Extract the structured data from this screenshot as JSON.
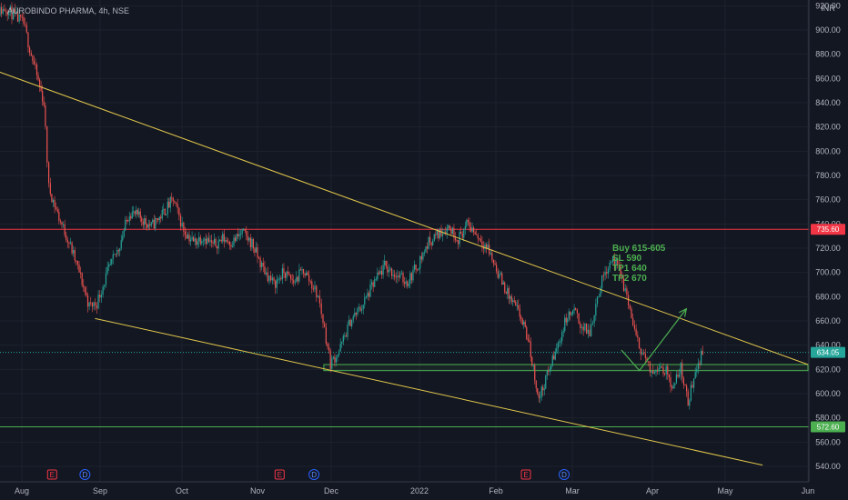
{
  "chart_data": {
    "type": "candlestick",
    "symbol": "AUROBINDO PHARMA, 4h, NSE",
    "currency": "INR",
    "y_ticks": [
      "540.00",
      "560.00",
      "580.00",
      "600.00",
      "620.00",
      "640.00",
      "660.00",
      "680.00",
      "700.00",
      "720.00",
      "740.00",
      "760.00",
      "780.00",
      "800.00",
      "820.00",
      "840.00",
      "860.00",
      "880.00",
      "900.00",
      "920.00"
    ],
    "x_ticks": [
      "Aug",
      "Sep",
      "Oct",
      "Nov",
      "Dec",
      "2022",
      "Feb",
      "Mar",
      "Apr",
      "May",
      "Jun"
    ],
    "ylim": [
      532,
      922
    ],
    "price_levels": [
      {
        "label": "735.60",
        "value": 735.6,
        "color": "#f23645",
        "style": "solid"
      },
      {
        "label": "634.05",
        "value": 634.05,
        "color": "#26a69a",
        "style": "dotted"
      },
      {
        "label": "572.60",
        "value": 572.6,
        "color": "#4caf50",
        "style": "solid"
      }
    ],
    "trendlines": [
      {
        "from": [
          "Jul 1",
          882
        ],
        "to": [
          "Jun 1",
          624
        ],
        "color": "#e2c74b"
      },
      {
        "from": [
          "Aug 30",
          662
        ],
        "to": [
          "May 15",
          541
        ],
        "color": "#e2c74b"
      }
    ],
    "support_zone": {
      "from": "Nov 28",
      "to": "Jun 1",
      "low": 619,
      "high": 624,
      "color": "#4caf50"
    },
    "projection_arrow": [
      [
        "Mar 20",
        636
      ],
      [
        "Mar 27",
        619
      ],
      [
        "Apr 15",
        670
      ]
    ],
    "annotation_lines": [
      "Buy 615-605",
      "SL 590",
      "TP1 640",
      "TP2 670"
    ],
    "event_markers": [
      {
        "text": "E",
        "date": "Aug 13",
        "type": "earnings"
      },
      {
        "text": "D",
        "date": "Aug 26",
        "type": "dividend"
      },
      {
        "text": "E",
        "date": "Nov 10",
        "type": "earnings"
      },
      {
        "text": "D",
        "date": "Nov 24",
        "type": "dividend"
      },
      {
        "text": "E",
        "date": "Feb 12",
        "type": "earnings"
      },
      {
        "text": "D",
        "date": "Feb 26",
        "type": "dividend"
      }
    ],
    "price_path": [
      [
        "Jul 20",
        912
      ],
      [
        "Jul 26",
        918
      ],
      [
        "Aug 2",
        905
      ],
      [
        "Aug 5",
        880
      ],
      [
        "Aug 10",
        840
      ],
      [
        "Aug 12",
        770
      ],
      [
        "Aug 16",
        745
      ],
      [
        "Aug 20",
        725
      ],
      [
        "Aug 24",
        700
      ],
      [
        "Aug 28",
        672
      ],
      [
        "Aug 31",
        675
      ],
      [
        "Sep 4",
        700
      ],
      [
        "Sep 8",
        720
      ],
      [
        "Sep 12",
        750
      ],
      [
        "Sep 16",
        745
      ],
      [
        "Sep 20",
        738
      ],
      [
        "Sep 24",
        748
      ],
      [
        "Sep 28",
        760
      ],
      [
        "Oct 2",
        735
      ],
      [
        "Oct 6",
        725
      ],
      [
        "Oct 10",
        730
      ],
      [
        "Oct 14",
        722
      ],
      [
        "Oct 18",
        728
      ],
      [
        "Oct 22",
        725
      ],
      [
        "Oct 26",
        733
      ],
      [
        "Oct 30",
        724
      ],
      [
        "Nov 3",
        705
      ],
      [
        "Nov 8",
        690
      ],
      [
        "Nov 12",
        700
      ],
      [
        "Nov 16",
        692
      ],
      [
        "Nov 20",
        702
      ],
      [
        "Nov 24",
        688
      ],
      [
        "Nov 26",
        680
      ],
      [
        "Nov 28",
        660
      ],
      [
        "Dec 1",
        625
      ],
      [
        "Dec 4",
        635
      ],
      [
        "Dec 8",
        660
      ],
      [
        "Dec 12",
        672
      ],
      [
        "Dec 16",
        690
      ],
      [
        "Dec 20",
        705
      ],
      [
        "Dec 24",
        698
      ],
      [
        "Dec 28",
        692
      ],
      [
        "Jan 1",
        708
      ],
      [
        "Jan 5",
        725
      ],
      [
        "Jan 9",
        732
      ],
      [
        "Jan 13",
        738
      ],
      [
        "Jan 17",
        728
      ],
      [
        "Jan 21",
        740
      ],
      [
        "Jan 25",
        730
      ],
      [
        "Jan 29",
        720
      ],
      [
        "Feb 2",
        700
      ],
      [
        "Feb 6",
        680
      ],
      [
        "Feb 10",
        665
      ],
      [
        "Feb 13",
        645
      ],
      [
        "Feb 15",
        620
      ],
      [
        "Feb 17",
        595
      ],
      [
        "Feb 20",
        615
      ],
      [
        "Feb 24",
        640
      ],
      [
        "Feb 27",
        662
      ],
      [
        "Mar 2",
        668
      ],
      [
        "Mar 5",
        655
      ],
      [
        "Mar 8",
        650
      ],
      [
        "Mar 11",
        680
      ],
      [
        "Mar 14",
        702
      ],
      [
        "Mar 17",
        712
      ],
      [
        "Mar 20",
        698
      ],
      [
        "Mar 23",
        675
      ],
      [
        "Mar 26",
        645
      ],
      [
        "Mar 29",
        632
      ],
      [
        "Apr 1",
        615
      ],
      [
        "Apr 4",
        625
      ],
      [
        "Apr 7",
        618
      ],
      [
        "Apr 10",
        605
      ],
      [
        "Apr 13",
        622
      ],
      [
        "Apr 16",
        592
      ],
      [
        "Apr 19",
        620
      ],
      [
        "Apr 22",
        634
      ]
    ]
  }
}
